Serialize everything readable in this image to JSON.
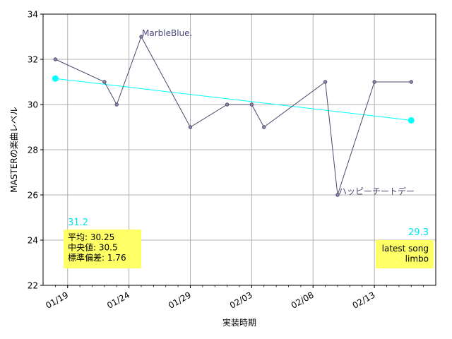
{
  "chart_data": {
    "type": "line",
    "xlabel": "実装時期",
    "ylabel": "MASTERの楽曲レベル",
    "ylim": [
      22,
      34
    ],
    "yticks": [
      22,
      24,
      26,
      28,
      30,
      32,
      34
    ],
    "xlim": [
      "2023-01-17",
      "2023-02-18"
    ],
    "xticks": [
      {
        "date": "2023-01-19",
        "label": "01/19"
      },
      {
        "date": "2023-01-24",
        "label": "01/24"
      },
      {
        "date": "2023-01-29",
        "label": "01/29"
      },
      {
        "date": "2023-02-03",
        "label": "02/03"
      },
      {
        "date": "2023-02-08",
        "label": "02/08"
      },
      {
        "date": "2023-02-13",
        "label": "02/13"
      }
    ],
    "grid": true,
    "series": [
      {
        "color": "#4a4a6a",
        "points": [
          {
            "x": "2023-01-18",
            "y": 32
          },
          {
            "x": "2023-01-22",
            "y": 31
          },
          {
            "x": "2023-01-23",
            "y": 30
          },
          {
            "x": "2023-01-25",
            "y": 33
          },
          {
            "x": "2023-01-29",
            "y": 29
          },
          {
            "x": "2023-02-01",
            "y": 30
          },
          {
            "x": "2023-02-03",
            "y": 30
          },
          {
            "x": "2023-02-04",
            "y": 29
          },
          {
            "x": "2023-02-09",
            "y": 31
          },
          {
            "x": "2023-02-10",
            "y": 26
          },
          {
            "x": "2023-02-13",
            "y": 31
          },
          {
            "x": "2023-02-16",
            "y": 31
          }
        ]
      }
    ],
    "trend": {
      "color": "#00ffff",
      "start": {
        "x": "2023-01-18",
        "y": 31.15
      },
      "end": {
        "x": "2023-02-16",
        "y": 29.3
      },
      "start_label": "31.2",
      "end_label": "29.3"
    },
    "annotations": [
      {
        "text": "MarbleBlue.",
        "x": "2023-01-25",
        "y": 33
      },
      {
        "text": "ハッピーチートデー",
        "x": "2023-02-10",
        "y": 26
      }
    ],
    "stats_box": {
      "lines": [
        "平均: 30.25",
        "中央値: 30.5",
        "標準偏差:  1.76"
      ],
      "color": "#ffff66"
    },
    "latest_box": {
      "lines": [
        "latest song",
        "limbo"
      ],
      "color": "#ffff66"
    }
  }
}
